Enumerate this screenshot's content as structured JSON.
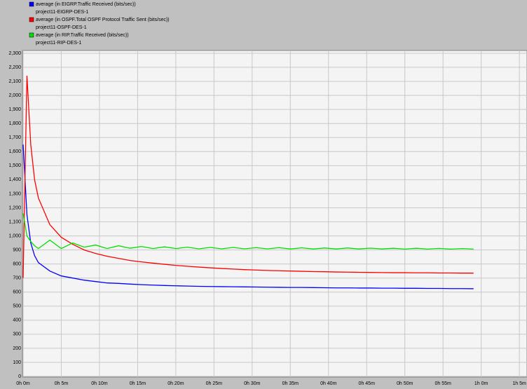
{
  "chart_data": {
    "type": "line",
    "x": [
      0,
      0.5,
      1,
      1.5,
      2,
      3.5,
      5,
      6.5,
      8,
      9.5,
      11,
      12.5,
      14,
      15.5,
      17,
      18.5,
      20,
      21.5,
      23,
      24.5,
      26,
      27.5,
      29,
      30.5,
      32,
      33.5,
      35,
      36.5,
      38,
      39.5,
      41,
      42.5,
      44,
      45.5,
      47,
      48.5,
      50,
      51.5,
      53,
      54.5,
      56,
      57.5,
      59
    ],
    "series": [
      {
        "name": "average (in EIGRP.Traffic Received (bits/sec))",
        "scenario": "project11-EIGRP-DES-1",
        "color": "#0000ff",
        "values": [
          1650,
          1150,
          950,
          860,
          810,
          750,
          715,
          700,
          685,
          675,
          665,
          662,
          657,
          653,
          650,
          647,
          645,
          643,
          641,
          640,
          639,
          638,
          637,
          636,
          635,
          634,
          633,
          633,
          632,
          631,
          630,
          630,
          629,
          629,
          628,
          628,
          627,
          627,
          626,
          626,
          625,
          625,
          624
        ]
      },
      {
        "name": "average (in OSPF.Total OSPF Protocol Traffic Sent (bits/sec))",
        "scenario": "project11-OSPF-DES-1",
        "color": "#ff0000",
        "values": [
          700,
          2140,
          1650,
          1400,
          1270,
          1080,
          990,
          940,
          900,
          875,
          855,
          840,
          825,
          815,
          806,
          798,
          790,
          784,
          778,
          773,
          768,
          764,
          760,
          757,
          754,
          752,
          750,
          748,
          746,
          745,
          743,
          742,
          741,
          740,
          739,
          738,
          738,
          737,
          737,
          736,
          736,
          735,
          735
        ]
      },
      {
        "name": "average (in RIP.Traffic Received (bits/sec))",
        "scenario": "project11-RIP-DES-1",
        "color": "#00e000",
        "values": [
          1160,
          1000,
          960,
          930,
          910,
          970,
          910,
          950,
          920,
          935,
          910,
          930,
          912,
          925,
          910,
          922,
          910,
          920,
          908,
          918,
          908,
          918,
          908,
          916,
          908,
          916,
          907,
          915,
          907,
          914,
          907,
          914,
          907,
          913,
          907,
          912,
          906,
          912,
          906,
          911,
          906,
          910,
          906
        ]
      }
    ],
    "xlim": [
      0,
      66
    ],
    "xticks": [
      {
        "value": 0,
        "label": "0h 0m"
      },
      {
        "value": 5,
        "label": "0h 5m"
      },
      {
        "value": 10,
        "label": "0h 10m"
      },
      {
        "value": 15,
        "label": "0h 15m"
      },
      {
        "value": 20,
        "label": "0h 20m"
      },
      {
        "value": 25,
        "label": "0h 25m"
      },
      {
        "value": 30,
        "label": "0h 30m"
      },
      {
        "value": 35,
        "label": "0h 35m"
      },
      {
        "value": 40,
        "label": "0h 40m"
      },
      {
        "value": 45,
        "label": "0h 45m"
      },
      {
        "value": 50,
        "label": "0h 50m"
      },
      {
        "value": 55,
        "label": "0h 55m"
      },
      {
        "value": 60,
        "label": "1h 0m"
      },
      {
        "value": 65,
        "label": "1h 5m"
      }
    ],
    "ylim": [
      0,
      2300
    ],
    "yticks": [
      0,
      100,
      200,
      300,
      400,
      500,
      600,
      700,
      800,
      900,
      {
        "value": 1000,
        "label": "1,000"
      },
      {
        "value": 1100,
        "label": "1,100"
      },
      {
        "value": 1200,
        "label": "1,200"
      },
      {
        "value": 1300,
        "label": "1,300"
      },
      {
        "value": 1400,
        "label": "1,400"
      },
      {
        "value": 1500,
        "label": "1,500"
      },
      {
        "value": 1600,
        "label": "1,600"
      },
      {
        "value": 1700,
        "label": "1,700"
      },
      {
        "value": 1800,
        "label": "1,800"
      },
      {
        "value": 1900,
        "label": "1,900"
      },
      {
        "value": 2000,
        "label": "2,000"
      },
      {
        "value": 2100,
        "label": "2,100"
      },
      {
        "value": 2200,
        "label": "2,200"
      },
      {
        "value": 2300,
        "label": "2,300"
      }
    ],
    "grid": true
  }
}
